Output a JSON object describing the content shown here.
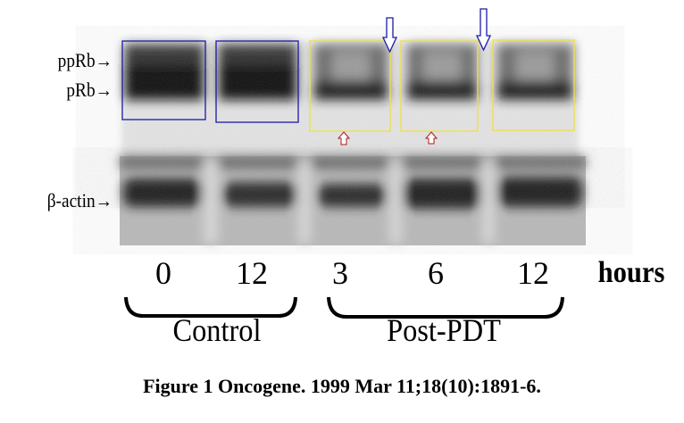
{
  "labels": {
    "pprb": "ppRb→",
    "prb": "pRb→",
    "actin": "β-actin→"
  },
  "lanes": [
    {
      "time": "0",
      "group": "Control",
      "box_color": "#1a1aa8"
    },
    {
      "time": "12",
      "group": "Control",
      "box_color": "#1a1aa8"
    },
    {
      "time": "3",
      "group": "Post-PDT",
      "box_color": "#f0e040"
    },
    {
      "time": "6",
      "group": "Post-PDT",
      "box_color": "#f0e040"
    },
    {
      "time": "12",
      "group": "Post-PDT",
      "box_color": "#f0e040"
    }
  ],
  "units": "hours",
  "groups": {
    "control": "Control",
    "post_pdt": "Post-PDT"
  },
  "caption": "Figure 1 Oncogene. 1999 Mar 11;18(10):1891-6.",
  "colors": {
    "down_arrow": "#1a1aa8",
    "up_arrow": "#b01818",
    "control_box": "#1a1aa8",
    "pdt_box": "#f0e040"
  }
}
